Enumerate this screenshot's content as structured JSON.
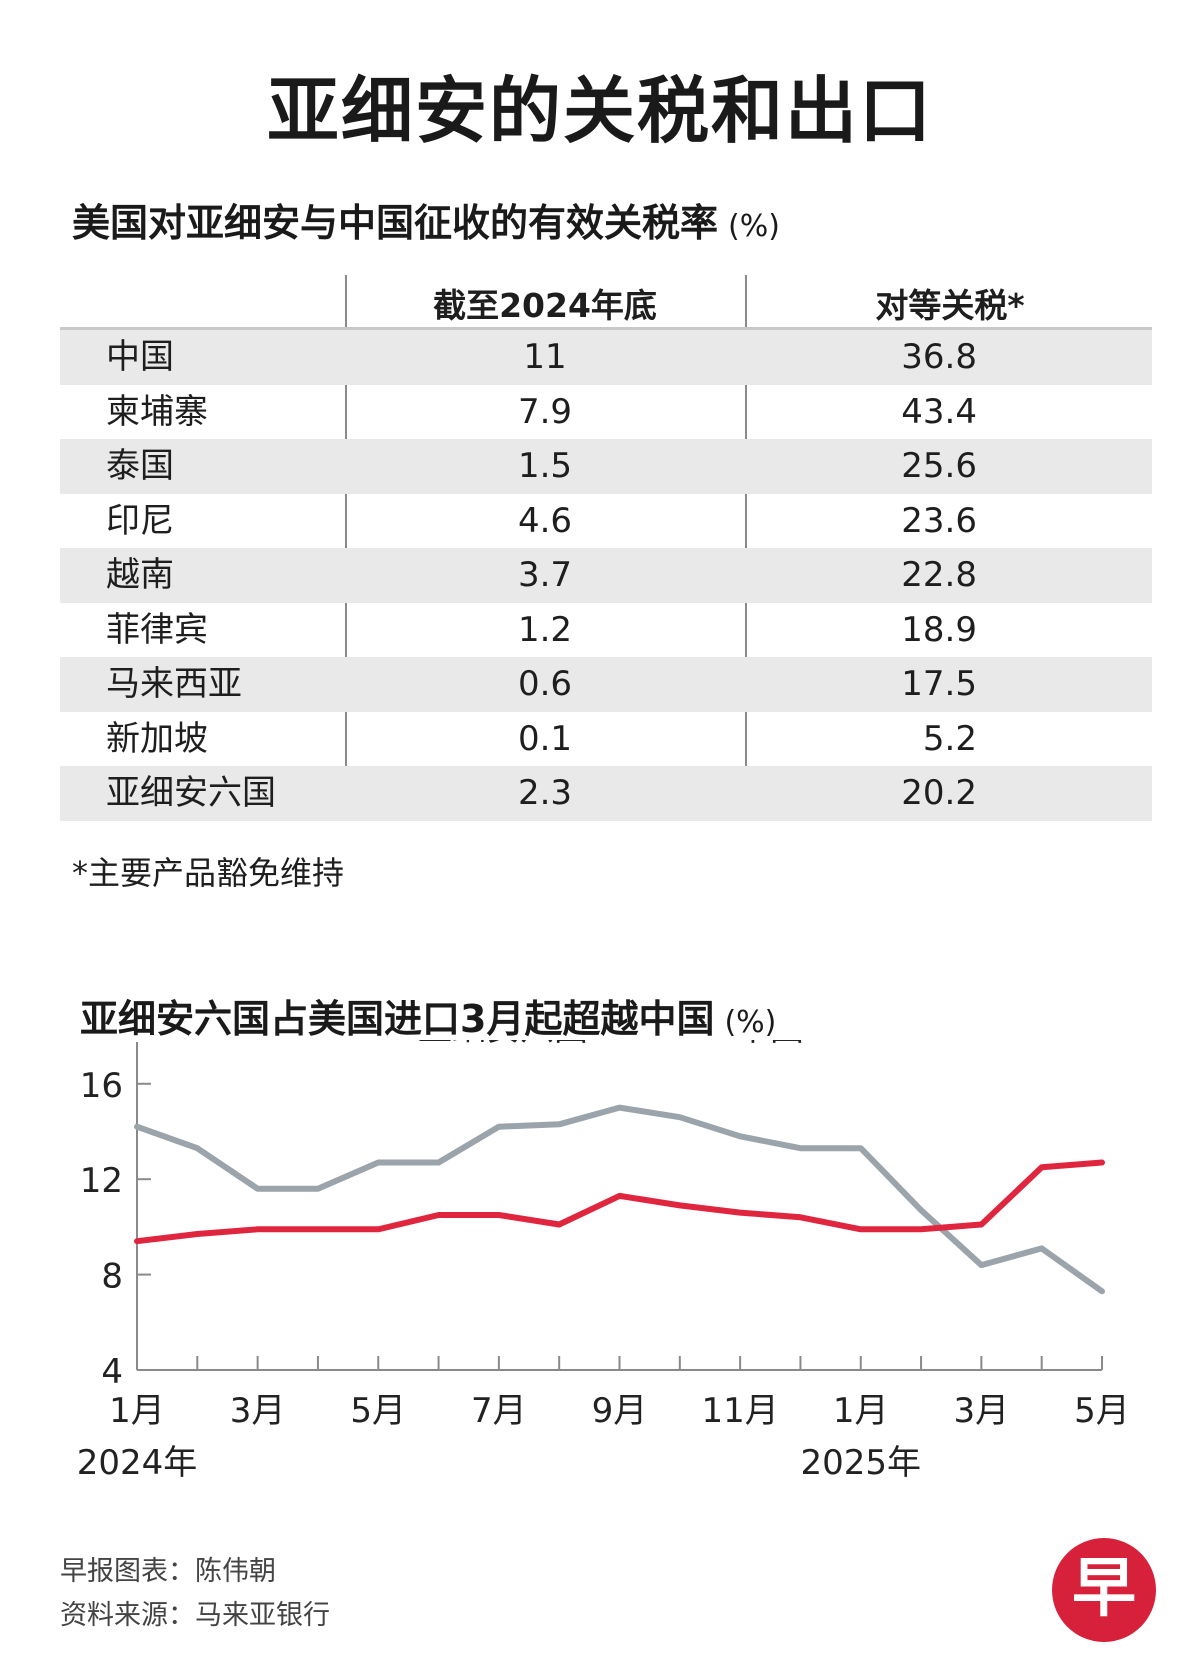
{
  "title": "亚细安的关税和出口",
  "table": {
    "title": "美国对亚细安与中国征收的有效关税率",
    "unit": "(%)",
    "headers": [
      "",
      "截至2024年底",
      "对等关税*"
    ],
    "rows": [
      {
        "country": "中国",
        "end2024": "11",
        "reciprocal": "36.8"
      },
      {
        "country": "柬埔寨",
        "end2024": "7.9",
        "reciprocal": "43.4"
      },
      {
        "country": "泰国",
        "end2024": "1.5",
        "reciprocal": "25.6"
      },
      {
        "country": "印尼",
        "end2024": "4.6",
        "reciprocal": "23.6"
      },
      {
        "country": "越南",
        "end2024": "3.7",
        "reciprocal": "22.8"
      },
      {
        "country": "菲律宾",
        "end2024": "1.2",
        "reciprocal": "18.9"
      },
      {
        "country": "马来西亚",
        "end2024": "0.6",
        "reciprocal": "17.5"
      },
      {
        "country": "新加坡",
        "end2024": "0.1",
        "reciprocal": "5.2"
      },
      {
        "country": "亚细安六国",
        "end2024": "2.3",
        "reciprocal": "20.2"
      }
    ],
    "footnote": "*主要产品豁免维持"
  },
  "chart_data": {
    "type": "line",
    "title": "亚细安六国占美国进口3月起超越中国",
    "unit": "(%)",
    "x": [
      "2024-01",
      "2024-02",
      "2024-03",
      "2024-04",
      "2024-05",
      "2024-06",
      "2024-07",
      "2024-08",
      "2024-09",
      "2024-10",
      "2024-11",
      "2024-12",
      "2025-01",
      "2025-02",
      "2025-03",
      "2025-04",
      "2025-05"
    ],
    "x_tick_labels": [
      "1月",
      "",
      "3月",
      "",
      "5月",
      "",
      "7月",
      "",
      "9月",
      "",
      "11月",
      "",
      "1月",
      "",
      "3月",
      "",
      "5月"
    ],
    "year_labels": [
      {
        "index": 0,
        "label": "2024年"
      },
      {
        "index": 12,
        "label": "2025年"
      }
    ],
    "series": [
      {
        "name": "亚细安六国",
        "color": "#e0263f",
        "values": [
          9.4,
          9.7,
          9.9,
          9.9,
          9.9,
          10.5,
          10.5,
          10.1,
          11.3,
          10.9,
          10.6,
          10.4,
          9.9,
          9.9,
          10.1,
          12.5,
          12.7
        ]
      },
      {
        "name": "中国",
        "color": "#9aa4aa",
        "values": [
          14.2,
          13.3,
          11.6,
          11.6,
          12.7,
          12.7,
          14.2,
          14.3,
          15.0,
          14.6,
          13.8,
          13.3,
          13.3,
          10.7,
          8.4,
          9.1,
          7.3
        ]
      }
    ],
    "yticks": [
      4,
      8,
      12,
      16
    ],
    "ylim": [
      4,
      17.5
    ],
    "legend": "top-center"
  },
  "credits": {
    "line1": "早报图表：陈伟朝",
    "line2": "资料来源：马来亚银行"
  },
  "logo": "早"
}
